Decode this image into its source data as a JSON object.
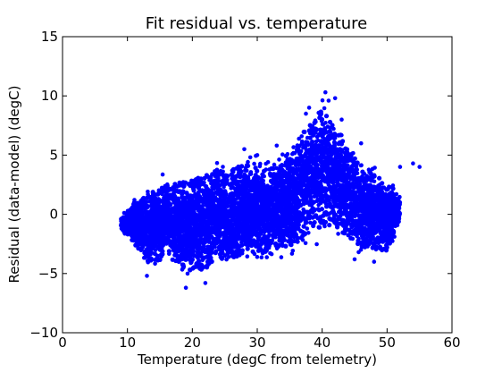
{
  "chart_data": {
    "type": "scatter",
    "title": "Fit residual vs. temperature",
    "xlabel": "Temperature (degC from telemetry)",
    "ylabel": "Residual (data-model) (degC)",
    "xlim": [
      0,
      60
    ],
    "ylim": [
      -10,
      15
    ],
    "xticks": [
      0,
      10,
      20,
      30,
      40,
      50,
      60
    ],
    "yticks": [
      -10,
      -5,
      0,
      5,
      10,
      15
    ],
    "xtick_labels": [
      "0",
      "10",
      "20",
      "30",
      "40",
      "50",
      "60"
    ],
    "ytick_labels": [
      "−10",
      "−5",
      "0",
      "5",
      "10",
      "15"
    ],
    "grid": false,
    "legend": "none",
    "marker_color": "#0000ff",
    "series": [
      {
        "points_description": "dense cloud of residuals",
        "x": [
          9,
          10,
          11,
          12,
          13,
          14,
          15,
          16,
          17,
          18,
          19,
          20,
          21,
          22,
          23,
          24,
          25,
          26,
          27,
          28,
          29,
          30,
          31,
          32,
          33,
          34,
          35,
          36,
          37,
          38,
          39,
          40,
          41,
          42,
          43,
          44,
          45,
          46,
          47,
          48,
          49,
          50,
          51,
          52,
          53,
          54,
          55
        ],
        "y_low": [
          -1.5,
          -2,
          -3,
          -4,
          -5,
          -5,
          -5,
          -4,
          -5,
          -5.5,
          -6,
          -6,
          -6,
          -6,
          -5.5,
          -5,
          -5,
          -5,
          -5,
          -4.5,
          -4.5,
          -4.5,
          -4.5,
          -4,
          -4,
          -4,
          -4,
          -4,
          -3.5,
          -3,
          -3,
          -2.5,
          -2.5,
          -2.5,
          -3,
          -3,
          -3.5,
          -4,
          -4,
          -4,
          -4,
          -4,
          -3,
          -1,
          3.5,
          3.5,
          3.5
        ],
        "y_high": [
          0,
          0.5,
          1.5,
          2,
          2.5,
          3,
          3.5,
          3.5,
          3.5,
          4,
          4,
          4,
          4.5,
          4.5,
          5,
          5,
          5,
          5,
          5.5,
          5.5,
          5.5,
          5,
          5,
          5,
          5.5,
          6,
          6.5,
          7,
          8.5,
          9,
          10,
          10.5,
          10,
          9,
          8,
          6.5,
          6,
          5,
          5,
          4.5,
          4,
          3,
          3,
          2,
          4,
          4,
          4
        ]
      }
    ]
  }
}
